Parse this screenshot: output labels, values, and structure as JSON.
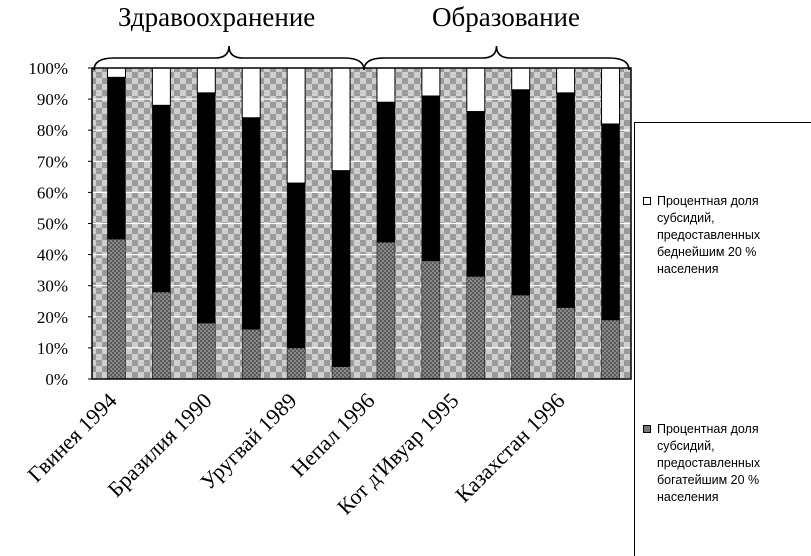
{
  "chart_data": {
    "type": "bar",
    "stacked": true,
    "percent_stacked": true,
    "groups": [
      {
        "label": "Здравоохранение",
        "categories": [
          "Гвинея 1994",
          "Бразилия 1990",
          "Уругвай 1989"
        ]
      },
      {
        "label": "Образование",
        "categories": [
          "Непал 1996",
          "Кот д'Ивуар 1995",
          "Казахстан 1996"
        ]
      }
    ],
    "categories": [
      "Гвинея 1994",
      "",
      "Бразилия 1990",
      "",
      "Уругвай 1989",
      "",
      "Непал 1996",
      "",
      "Кот д'Ивуар 1995",
      "",
      "Казахстан 1996",
      ""
    ],
    "x_tick_labels": [
      "Гвинея 1994",
      "Бразилия 1990",
      "Уругвай 1989",
      "Непал 1996",
      "Кот д'Ивуар 1995",
      "Казахстан 1996"
    ],
    "series": [
      {
        "name": "Процентная доля субсидий, предоставленных богатейшим 20 % населения",
        "values": [
          45,
          28,
          18,
          16,
          10,
          4,
          44,
          38,
          33,
          27,
          23,
          19
        ]
      },
      {
        "name": "",
        "values": [
          52,
          60,
          74,
          68,
          53,
          63,
          45,
          53,
          53,
          66,
          69,
          63
        ]
      },
      {
        "name": "Процентная доля субсидий, предоставленных беднейшим 20 % населения",
        "values": [
          3,
          12,
          8,
          16,
          37,
          33,
          11,
          9,
          14,
          7,
          8,
          18
        ]
      }
    ],
    "ytick_labels": [
      "0%",
      "10%",
      "20%",
      "30%",
      "40%",
      "50%",
      "60%",
      "70%",
      "80%",
      "90%",
      "100%"
    ],
    "ylim": [
      0,
      100
    ],
    "legend": {
      "position": "right",
      "entries": [
        {
          "label": "Процентная доля субсидий, предоставленных беднейшим 20 % населения",
          "color": "#ffffff"
        },
        {
          "label": "Процентная доля субсидий, предоставленных богатейшим 20 % населения",
          "color": "#777777"
        }
      ]
    },
    "colors": {
      "rich": "#888888",
      "middle": "#000000",
      "poor": "#ffffff",
      "background": "#d8d8d8"
    }
  }
}
